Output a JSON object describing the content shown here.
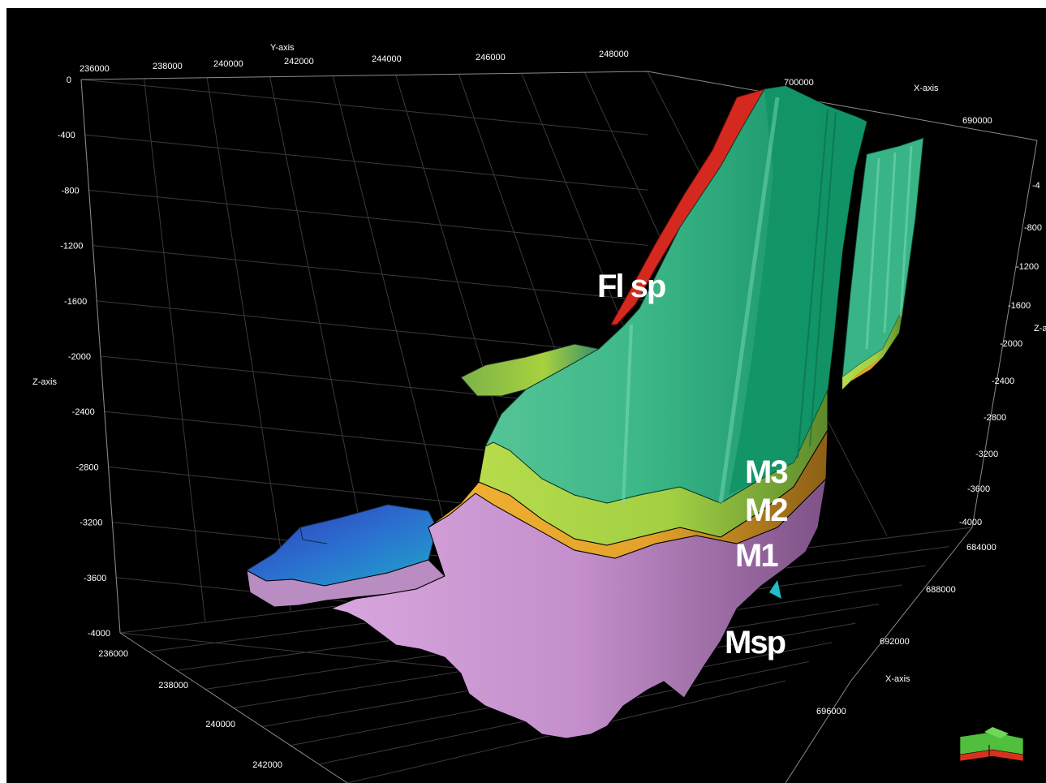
{
  "chart_data": {
    "type": "surface3d",
    "axes": {
      "y_top": {
        "label": "Y-axis",
        "ticks": [
          "236000",
          "238000",
          "240000",
          "242000",
          "244000",
          "246000",
          "248000"
        ]
      },
      "x_top": {
        "label": "X-axis",
        "ticks": [
          "700000",
          "690000"
        ]
      },
      "z_left": {
        "label": "Z-axis",
        "ticks": [
          "0",
          "-400",
          "-800",
          "-1200",
          "-1600",
          "-2000",
          "-2400",
          "-2800",
          "-3200",
          "-3600",
          "-4000"
        ]
      },
      "z_right": {
        "label": "Z-a",
        "ticks": [
          "-4",
          "-800",
          "-1200",
          "-1600",
          "-2000",
          "-2400",
          "-2800",
          "-3200",
          "-3600",
          "-4000"
        ]
      },
      "y_bottom": {
        "ticks": [
          "236000",
          "238000",
          "240000",
          "242000"
        ]
      },
      "x_bottom": {
        "label": "X-axis",
        "ticks": [
          "684000",
          "688000",
          "692000",
          "696000"
        ]
      }
    },
    "units": [
      {
        "name": "Fl sp",
        "color": "#d5291f"
      },
      {
        "name": "M3",
        "color": "#48c08e"
      },
      {
        "name": "M2",
        "color": "#a7d243"
      },
      {
        "name": "M1",
        "color": "#e4a22a"
      },
      {
        "name": "Msp",
        "color": "#c993cf"
      }
    ],
    "zlim": [
      -4000,
      0
    ]
  },
  "colors": {
    "background": "#000000",
    "fault": "#d5291f",
    "green_face": "#2fa47a",
    "teal_face": "#48c08e",
    "lime_layer": "#a7d243",
    "orange_layer": "#e4a22a",
    "pink_layer": "#c993cf",
    "blue_surface": "#2b56c6"
  },
  "orientation_icon": "orientation-cube-icon"
}
